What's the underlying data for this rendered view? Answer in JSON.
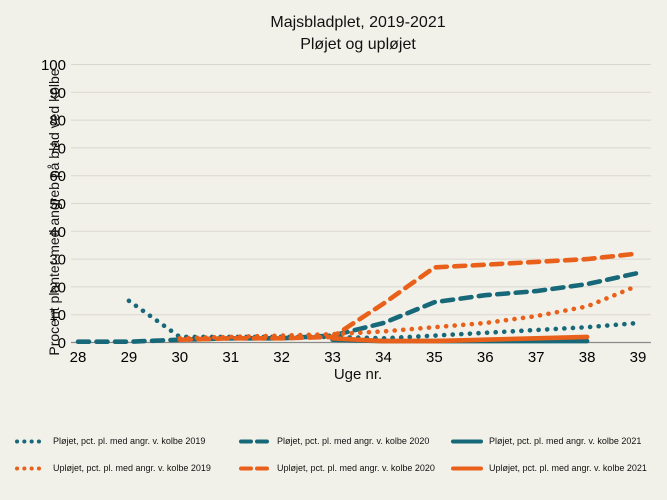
{
  "chart_data": {
    "type": "line",
    "title": "Majsbladplet, 2019-2021",
    "subtitle": "Pløjet og upløjet",
    "xlabel": "Uge nr.",
    "ylabel": "Procent planter med angreb på blad ved kolbe",
    "x_ticks": [
      28,
      29,
      30,
      31,
      32,
      33,
      34,
      35,
      36,
      37,
      38,
      39
    ],
    "y_ticks": [
      0,
      10,
      20,
      30,
      40,
      50,
      60,
      70,
      80,
      90,
      100
    ],
    "x_range": [
      28,
      39
    ],
    "y_range": [
      0,
      100
    ],
    "grid": true,
    "legend_position": "bottom",
    "colors": {
      "teal": "#17697a",
      "orange": "#e8601a",
      "grid": "#d9d8d0",
      "axis": "#8a8a8a",
      "background": "#f2f1e9"
    },
    "series": [
      {
        "name": "Pløjet, pct. pl. med angr. v. kolbe 2019",
        "color": "#17697a",
        "style": "dotted",
        "points": [
          [
            29,
            15
          ],
          [
            30,
            2
          ],
          [
            31,
            2
          ],
          [
            32,
            2
          ],
          [
            33,
            2
          ],
          [
            34,
            1.5
          ],
          [
            35,
            2.5
          ],
          [
            36,
            3.5
          ],
          [
            37,
            4.5
          ],
          [
            38,
            5.5
          ],
          [
            39,
            7
          ]
        ]
      },
      {
        "name": "Pløjet, pct. pl. med angr. v. kolbe 2020",
        "color": "#17697a",
        "style": "dashed",
        "points": [
          [
            28,
            0.3
          ],
          [
            29,
            0.3
          ],
          [
            30,
            1
          ],
          [
            31,
            1.5
          ],
          [
            32,
            1.5
          ],
          [
            33,
            2.5
          ],
          [
            34,
            7
          ],
          [
            35,
            14.5
          ],
          [
            36,
            17
          ],
          [
            37,
            18.5
          ],
          [
            38,
            21
          ],
          [
            39,
            25
          ]
        ]
      },
      {
        "name": "Pløjet, pct. pl. med angr. v. kolbe 2021",
        "color": "#17697a",
        "style": "solid",
        "points": [
          [
            33,
            1
          ],
          [
            34,
            0.5
          ],
          [
            35,
            0.5
          ],
          [
            36,
            0.5
          ],
          [
            37,
            0.5
          ],
          [
            38,
            0.5
          ]
        ]
      },
      {
        "name": "Upløjet, pct. pl. med angr. v. kolbe 2019",
        "color": "#e8601a",
        "style": "dotted",
        "points": [
          [
            30,
            1.5
          ],
          [
            31,
            2
          ],
          [
            32,
            2.5
          ],
          [
            33,
            3
          ],
          [
            34,
            4
          ],
          [
            35,
            5.5
          ],
          [
            36,
            7
          ],
          [
            37,
            9.5
          ],
          [
            38,
            13
          ],
          [
            39,
            20.5
          ]
        ]
      },
      {
        "name": "Upløjet, pct. pl. med angr. v. kolbe 2020",
        "color": "#e8601a",
        "style": "dashed",
        "points": [
          [
            30,
            1
          ],
          [
            31,
            1.5
          ],
          [
            32,
            1.5
          ],
          [
            33,
            2
          ],
          [
            34,
            14
          ],
          [
            35,
            27
          ],
          [
            36,
            28
          ],
          [
            37,
            29
          ],
          [
            38,
            30
          ],
          [
            39,
            32
          ]
        ]
      },
      {
        "name": "Upløjet, pct. pl. med angr. v. kolbe 2021",
        "color": "#e8601a",
        "style": "solid",
        "points": [
          [
            33,
            1.5
          ],
          [
            34,
            0.5
          ],
          [
            35,
            0.5
          ],
          [
            36,
            1
          ],
          [
            37,
            1.5
          ],
          [
            38,
            2
          ]
        ]
      }
    ]
  }
}
